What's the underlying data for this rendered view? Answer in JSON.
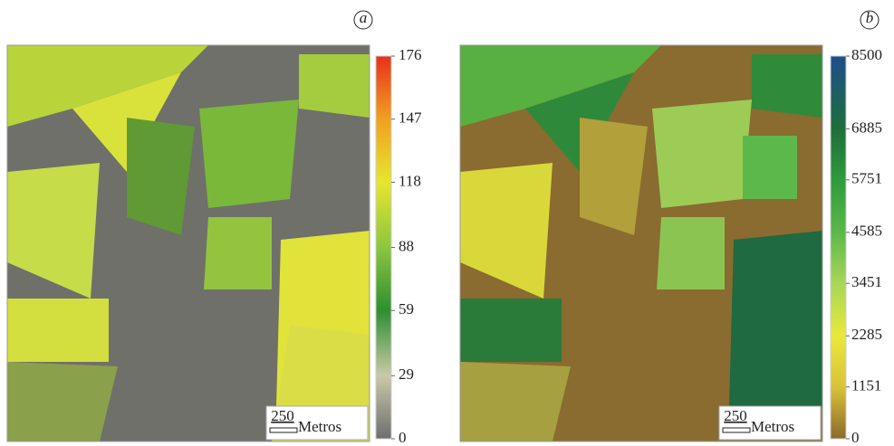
{
  "panels": [
    {
      "label": "a",
      "colorbar": {
        "lim": [
          0,
          176
        ],
        "ticks": [
          0,
          29,
          59,
          88,
          118,
          147,
          176
        ],
        "colors": [
          "#6e6e6e",
          "#c9c9a8",
          "#2f8f2f",
          "#8cc63f",
          "#e6e62e",
          "#f0a020",
          "#e8301c"
        ]
      },
      "scale_bar": {
        "value": 250,
        "unit": "Metros"
      }
    },
    {
      "label": "b",
      "colorbar": {
        "lim": [
          0,
          8500
        ],
        "ticks": [
          0,
          1151,
          2285,
          3451,
          4585,
          5751,
          6885,
          8500
        ],
        "colors": [
          "#8c6a2a",
          "#d9c23a",
          "#e9e93a",
          "#a8d65a",
          "#5cb84a",
          "#2f9a3c",
          "#1f6e3a",
          "#1d4e8c"
        ]
      },
      "scale_bar": {
        "value": 250,
        "unit": "Metros"
      }
    }
  ]
}
